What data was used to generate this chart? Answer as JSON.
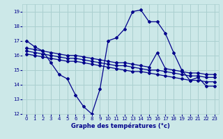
{
  "title": "Graphe des températures (°c)",
  "bg_color": "#cce8e8",
  "grid_color": "#aacfcf",
  "line_color": "#00008b",
  "xlim": [
    -0.5,
    23.5
  ],
  "ylim": [
    12,
    19.5
  ],
  "xticks": [
    0,
    1,
    2,
    3,
    4,
    5,
    6,
    7,
    8,
    9,
    10,
    11,
    12,
    13,
    14,
    15,
    16,
    17,
    18,
    19,
    20,
    21,
    22,
    23
  ],
  "yticks": [
    12,
    13,
    14,
    15,
    16,
    17,
    18,
    19
  ],
  "series1_x": [
    0,
    1,
    2,
    3,
    4,
    5,
    6,
    7,
    8,
    9,
    10,
    11,
    12,
    13,
    14,
    15,
    16,
    17,
    18,
    19,
    20,
    21,
    22,
    23
  ],
  "series1_y": [
    17.0,
    16.6,
    16.3,
    15.5,
    14.7,
    14.4,
    13.3,
    12.5,
    12.0,
    13.7,
    17.0,
    17.2,
    17.8,
    19.0,
    19.1,
    18.3,
    18.3,
    17.5,
    16.2,
    15.0,
    14.3,
    14.5,
    13.9,
    13.9
  ],
  "series2_x": [
    0,
    1,
    2,
    3,
    4,
    5,
    6,
    7,
    8,
    9,
    10,
    11,
    12,
    13,
    14,
    15,
    16,
    17,
    18,
    19,
    20,
    21,
    22,
    23
  ],
  "series2_y": [
    16.5,
    16.4,
    16.3,
    16.2,
    16.1,
    16.0,
    16.0,
    15.9,
    15.8,
    15.7,
    15.6,
    15.5,
    15.5,
    15.4,
    15.3,
    15.2,
    16.2,
    15.1,
    15.0,
    14.9,
    14.8,
    14.8,
    14.7,
    14.7
  ],
  "series3_x": [
    0,
    1,
    2,
    3,
    4,
    5,
    6,
    7,
    8,
    9,
    10,
    11,
    12,
    13,
    14,
    15,
    16,
    17,
    18,
    19,
    20,
    21,
    22,
    23
  ],
  "series3_y": [
    16.3,
    16.2,
    16.1,
    16.0,
    15.9,
    15.8,
    15.8,
    15.7,
    15.6,
    15.5,
    15.4,
    15.3,
    15.3,
    15.2,
    15.1,
    15.0,
    15.0,
    14.9,
    14.8,
    14.7,
    14.6,
    14.6,
    14.5,
    14.5
  ],
  "series4_x": [
    0,
    1,
    2,
    3,
    4,
    5,
    6,
    7,
    8,
    9,
    10,
    11,
    12,
    13,
    14,
    15,
    16,
    17,
    18,
    19,
    20,
    21,
    22,
    23
  ],
  "series4_y": [
    16.1,
    16.0,
    15.9,
    15.8,
    15.7,
    15.6,
    15.6,
    15.5,
    15.4,
    15.3,
    15.2,
    15.1,
    15.0,
    14.9,
    14.9,
    14.8,
    14.7,
    14.6,
    14.5,
    14.4,
    14.3,
    14.3,
    14.2,
    14.2
  ]
}
